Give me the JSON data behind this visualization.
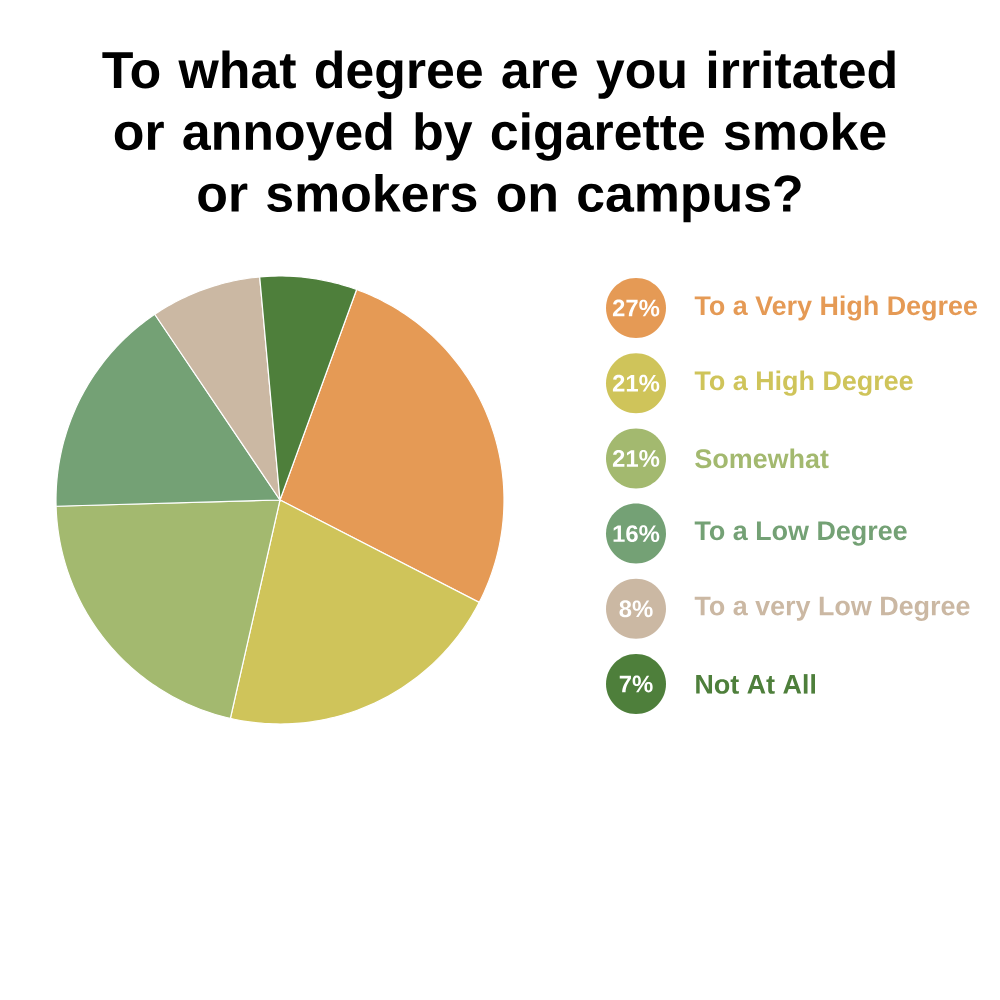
{
  "chart_data": {
    "type": "pie",
    "title": "To what degree are you irritated or annoyed by cigarette smoke or smokers on campus?",
    "categories": [
      "To a Very High Degree",
      "To a High Degree",
      "Somewhat",
      "To a Low Degree",
      "To a very Low Degree",
      "Not At All"
    ],
    "values": [
      27,
      21,
      21,
      16,
      8,
      7
    ],
    "value_labels": [
      "27%",
      "21%",
      "21%",
      "16%",
      "8%",
      "7%"
    ],
    "colors": [
      "#e59a55",
      "#cfc45a",
      "#a3b96f",
      "#74a175",
      "#cbb8a3",
      "#4e7f3b"
    ],
    "legend": "right"
  }
}
